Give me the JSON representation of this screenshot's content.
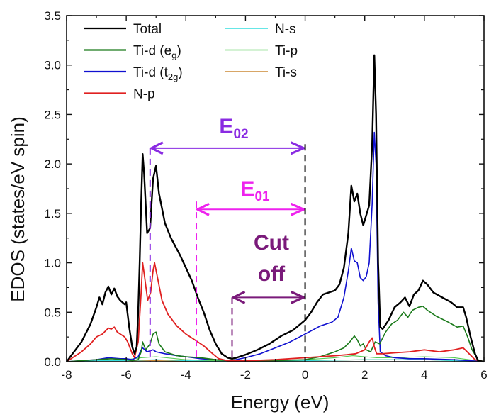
{
  "chart_data": {
    "type": "line",
    "xlabel": "Energy (eV)",
    "ylabel": "EDOS (states/eV spin)",
    "xlim": [
      -8,
      6
    ],
    "ylim": [
      0,
      3.5
    ],
    "x_ticks": [
      "-8",
      "-6",
      "-4",
      "-2",
      "0",
      "2",
      "4",
      "6"
    ],
    "y_ticks": [
      "0.0",
      "0.5",
      "1.0",
      "1.5",
      "2.0",
      "2.5",
      "3.0",
      "3.5"
    ],
    "grid": false,
    "legend": {
      "placement": "top-left",
      "columns": [
        [
          {
            "label": "Total",
            "sub": "",
            "color": "#000000"
          },
          {
            "label": "Ti-d (e",
            "sub": "g",
            "close": ")",
            "color": "#1a7a1a"
          },
          {
            "label": "Ti-d (t",
            "sub": "2g",
            "close": ")",
            "color": "#1010d0"
          },
          {
            "label": "N-p",
            "sub": "",
            "color": "#e02020"
          }
        ],
        [
          {
            "label": "N-s",
            "sub": "",
            "color": "#33dddd"
          },
          {
            "label": "Ti-p",
            "sub": "",
            "color": "#55cc55"
          },
          {
            "label": "Ti-s",
            "sub": "",
            "color": "#cc8833"
          }
        ]
      ]
    },
    "series": [
      {
        "name": "Total",
        "color": "#000000",
        "width": 2.4,
        "points": [
          [
            -8,
            0
          ],
          [
            -7.8,
            0.08
          ],
          [
            -7.5,
            0.2
          ],
          [
            -7.2,
            0.38
          ],
          [
            -7.0,
            0.55
          ],
          [
            -6.9,
            0.65
          ],
          [
            -6.8,
            0.58
          ],
          [
            -6.7,
            0.7
          ],
          [
            -6.6,
            0.76
          ],
          [
            -6.5,
            0.68
          ],
          [
            -6.4,
            0.74
          ],
          [
            -6.3,
            0.66
          ],
          [
            -6.2,
            0.62
          ],
          [
            -6.05,
            0.58
          ],
          [
            -6.0,
            0.6
          ],
          [
            -5.9,
            0.35
          ],
          [
            -5.8,
            0.15
          ],
          [
            -5.72,
            0.08
          ],
          [
            -5.65,
            0.15
          ],
          [
            -5.6,
            0.5
          ],
          [
            -5.55,
            1.0
          ],
          [
            -5.5,
            1.6
          ],
          [
            -5.45,
            2.1
          ],
          [
            -5.4,
            1.9
          ],
          [
            -5.3,
            1.3
          ],
          [
            -5.2,
            1.35
          ],
          [
            -5.1,
            1.85
          ],
          [
            -5.0,
            1.98
          ],
          [
            -4.9,
            1.7
          ],
          [
            -4.7,
            1.4
          ],
          [
            -4.5,
            1.25
          ],
          [
            -4.2,
            1.08
          ],
          [
            -4.0,
            0.95
          ],
          [
            -3.8,
            0.82
          ],
          [
            -3.6,
            0.65
          ],
          [
            -3.4,
            0.5
          ],
          [
            -3.2,
            0.32
          ],
          [
            -3.0,
            0.18
          ],
          [
            -2.8,
            0.08
          ],
          [
            -2.6,
            0.04
          ],
          [
            -2.45,
            0.03
          ],
          [
            -2.3,
            0.04
          ],
          [
            -2.0,
            0.07
          ],
          [
            -1.6,
            0.12
          ],
          [
            -1.2,
            0.18
          ],
          [
            -0.8,
            0.26
          ],
          [
            -0.4,
            0.32
          ],
          [
            0,
            0.42
          ],
          [
            0.2,
            0.5
          ],
          [
            0.4,
            0.6
          ],
          [
            0.6,
            0.68
          ],
          [
            0.8,
            0.7
          ],
          [
            1.0,
            0.72
          ],
          [
            1.15,
            0.78
          ],
          [
            1.3,
            0.95
          ],
          [
            1.45,
            1.3
          ],
          [
            1.55,
            1.78
          ],
          [
            1.65,
            1.62
          ],
          [
            1.75,
            1.7
          ],
          [
            1.85,
            1.5
          ],
          [
            1.95,
            1.38
          ],
          [
            2.05,
            1.48
          ],
          [
            2.15,
            1.58
          ],
          [
            2.25,
            2.2
          ],
          [
            2.32,
            3.1
          ],
          [
            2.38,
            2.5
          ],
          [
            2.45,
            1.0
          ],
          [
            2.52,
            0.35
          ],
          [
            2.6,
            0.33
          ],
          [
            2.8,
            0.42
          ],
          [
            3.0,
            0.55
          ],
          [
            3.2,
            0.6
          ],
          [
            3.35,
            0.65
          ],
          [
            3.5,
            0.56
          ],
          [
            3.65,
            0.68
          ],
          [
            3.8,
            0.72
          ],
          [
            3.95,
            0.82
          ],
          [
            4.1,
            0.78
          ],
          [
            4.3,
            0.7
          ],
          [
            4.6,
            0.65
          ],
          [
            4.9,
            0.6
          ],
          [
            5.1,
            0.55
          ],
          [
            5.3,
            0.55
          ],
          [
            5.4,
            0.45
          ],
          [
            5.55,
            0.25
          ],
          [
            5.7,
            0.08
          ],
          [
            5.8,
            0.01
          ],
          [
            6.0,
            0
          ]
        ]
      },
      {
        "name": "N-p",
        "color": "#e02020",
        "width": 1.8,
        "points": [
          [
            -8,
            0
          ],
          [
            -7.8,
            0.04
          ],
          [
            -7.5,
            0.1
          ],
          [
            -7.2,
            0.18
          ],
          [
            -7.0,
            0.25
          ],
          [
            -6.8,
            0.28
          ],
          [
            -6.6,
            0.34
          ],
          [
            -6.5,
            0.33
          ],
          [
            -6.4,
            0.35
          ],
          [
            -6.3,
            0.3
          ],
          [
            -6.2,
            0.28
          ],
          [
            -6.05,
            0.25
          ],
          [
            -5.95,
            0.2
          ],
          [
            -5.8,
            0.08
          ],
          [
            -5.72,
            0.04
          ],
          [
            -5.6,
            0.2
          ],
          [
            -5.5,
            0.7
          ],
          [
            -5.45,
            1.0
          ],
          [
            -5.38,
            0.85
          ],
          [
            -5.28,
            0.62
          ],
          [
            -5.18,
            0.7
          ],
          [
            -5.1,
            0.92
          ],
          [
            -5.05,
            1.0
          ],
          [
            -4.95,
            0.85
          ],
          [
            -4.8,
            0.62
          ],
          [
            -4.6,
            0.48
          ],
          [
            -4.3,
            0.36
          ],
          [
            -4.0,
            0.28
          ],
          [
            -3.7,
            0.22
          ],
          [
            -3.4,
            0.16
          ],
          [
            -3.1,
            0.08
          ],
          [
            -2.9,
            0.03
          ],
          [
            -2.6,
            0.01
          ],
          [
            -2.0,
            0.01
          ],
          [
            -1.0,
            0.02
          ],
          [
            0,
            0.04
          ],
          [
            0.5,
            0.05
          ],
          [
            1.0,
            0.06
          ],
          [
            1.4,
            0.07
          ],
          [
            1.7,
            0.08
          ],
          [
            2.0,
            0.12
          ],
          [
            2.15,
            0.2
          ],
          [
            2.25,
            0.24
          ],
          [
            2.32,
            0.15
          ],
          [
            2.4,
            0.08
          ],
          [
            2.6,
            0.08
          ],
          [
            3.0,
            0.09
          ],
          [
            3.5,
            0.1
          ],
          [
            4.0,
            0.12
          ],
          [
            4.5,
            0.1
          ],
          [
            5.0,
            0.12
          ],
          [
            5.3,
            0.14
          ],
          [
            5.5,
            0.08
          ],
          [
            5.7,
            0.02
          ],
          [
            6.0,
            0
          ]
        ]
      },
      {
        "name": "Ti-d (eg)",
        "color": "#1a7a1a",
        "width": 1.6,
        "points": [
          [
            -8,
            0
          ],
          [
            -7.0,
            0.02
          ],
          [
            -6.5,
            0.03
          ],
          [
            -6.0,
            0.02
          ],
          [
            -5.8,
            0.01
          ],
          [
            -5.6,
            0.02
          ],
          [
            -5.5,
            0.1
          ],
          [
            -5.45,
            0.2
          ],
          [
            -5.35,
            0.12
          ],
          [
            -5.2,
            0.18
          ],
          [
            -5.1,
            0.28
          ],
          [
            -5.0,
            0.3
          ],
          [
            -4.9,
            0.18
          ],
          [
            -4.7,
            0.1
          ],
          [
            -4.3,
            0.06
          ],
          [
            -4.0,
            0.05
          ],
          [
            -3.5,
            0.04
          ],
          [
            -3.0,
            0.02
          ],
          [
            -2.5,
            0.01
          ],
          [
            -1.0,
            0.01
          ],
          [
            0,
            0.02
          ],
          [
            0.5,
            0.05
          ],
          [
            1.0,
            0.1
          ],
          [
            1.3,
            0.14
          ],
          [
            1.5,
            0.2
          ],
          [
            1.65,
            0.26
          ],
          [
            1.75,
            0.22
          ],
          [
            1.85,
            0.16
          ],
          [
            1.95,
            0.18
          ],
          [
            2.05,
            0.12
          ],
          [
            2.2,
            0.1
          ],
          [
            2.35,
            0.2
          ],
          [
            2.5,
            0.18
          ],
          [
            2.7,
            0.3
          ],
          [
            2.9,
            0.38
          ],
          [
            3.1,
            0.42
          ],
          [
            3.3,
            0.5
          ],
          [
            3.45,
            0.45
          ],
          [
            3.6,
            0.52
          ],
          [
            3.8,
            0.55
          ],
          [
            3.95,
            0.56
          ],
          [
            4.1,
            0.52
          ],
          [
            4.4,
            0.46
          ],
          [
            4.8,
            0.4
          ],
          [
            5.1,
            0.35
          ],
          [
            5.3,
            0.36
          ],
          [
            5.45,
            0.25
          ],
          [
            5.6,
            0.12
          ],
          [
            5.8,
            0.02
          ],
          [
            6.0,
            0
          ]
        ]
      },
      {
        "name": "Ti-d (t2g)",
        "color": "#1010d0",
        "width": 1.6,
        "points": [
          [
            -8,
            0
          ],
          [
            -7.0,
            0.02
          ],
          [
            -6.6,
            0.04
          ],
          [
            -6.2,
            0.03
          ],
          [
            -6.0,
            0.03
          ],
          [
            -5.8,
            0.02
          ],
          [
            -5.6,
            0.05
          ],
          [
            -5.5,
            0.12
          ],
          [
            -5.45,
            0.14
          ],
          [
            -5.3,
            0.1
          ],
          [
            -5.1,
            0.12
          ],
          [
            -5.0,
            0.1
          ],
          [
            -4.7,
            0.08
          ],
          [
            -4.3,
            0.06
          ],
          [
            -4.0,
            0.05
          ],
          [
            -3.5,
            0.03
          ],
          [
            -3.0,
            0.02
          ],
          [
            -2.5,
            0.01
          ],
          [
            -2.0,
            0.04
          ],
          [
            -1.5,
            0.08
          ],
          [
            -1.0,
            0.14
          ],
          [
            -0.5,
            0.2
          ],
          [
            0,
            0.28
          ],
          [
            0.5,
            0.36
          ],
          [
            0.9,
            0.4
          ],
          [
            1.1,
            0.45
          ],
          [
            1.3,
            0.65
          ],
          [
            1.45,
            0.92
          ],
          [
            1.55,
            1.15
          ],
          [
            1.65,
            1.02
          ],
          [
            1.75,
            1.0
          ],
          [
            1.85,
            0.85
          ],
          [
            1.95,
            0.82
          ],
          [
            2.05,
            0.86
          ],
          [
            2.15,
            1.0
          ],
          [
            2.25,
            1.6
          ],
          [
            2.32,
            2.32
          ],
          [
            2.38,
            2.0
          ],
          [
            2.45,
            0.6
          ],
          [
            2.52,
            0.1
          ],
          [
            2.7,
            0.06
          ],
          [
            3.0,
            0.04
          ],
          [
            3.5,
            0.03
          ],
          [
            4.0,
            0.03
          ],
          [
            5.0,
            0.02
          ],
          [
            5.5,
            0.01
          ],
          [
            6.0,
            0
          ]
        ]
      },
      {
        "name": "Ti-p",
        "color": "#55cc55",
        "width": 1.1,
        "points": [
          [
            -8,
            0
          ],
          [
            -7.0,
            0.02
          ],
          [
            -6.5,
            0.03
          ],
          [
            -6.0,
            0.02
          ],
          [
            -5.5,
            0.04
          ],
          [
            -5.0,
            0.05
          ],
          [
            -4.0,
            0.02
          ],
          [
            -3.0,
            0.01
          ],
          [
            -2.0,
            0.01
          ],
          [
            0,
            0.02
          ],
          [
            1.0,
            0.04
          ],
          [
            1.6,
            0.06
          ],
          [
            2.0,
            0.05
          ],
          [
            2.4,
            0.04
          ],
          [
            3.0,
            0.04
          ],
          [
            4.0,
            0.05
          ],
          [
            5.0,
            0.04
          ],
          [
            5.5,
            0.02
          ],
          [
            6.0,
            0
          ]
        ]
      },
      {
        "name": "N-s",
        "color": "#33dddd",
        "width": 1.1,
        "points": [
          [
            -8,
            0
          ],
          [
            -7.0,
            0.01
          ],
          [
            -6.0,
            0.01
          ],
          [
            -5.0,
            0.02
          ],
          [
            -4.0,
            0.01
          ],
          [
            -2.0,
            0.0
          ],
          [
            0,
            0.01
          ],
          [
            2.0,
            0.02
          ],
          [
            4.0,
            0.02
          ],
          [
            6.0,
            0
          ]
        ]
      },
      {
        "name": "Ti-s",
        "color": "#cc8833",
        "width": 1.1,
        "points": [
          [
            -8,
            0
          ],
          [
            -7.0,
            0.01
          ],
          [
            -6.0,
            0.01
          ],
          [
            -5.0,
            0.01
          ],
          [
            -3.0,
            0.0
          ],
          [
            0,
            0.01
          ],
          [
            2.0,
            0.02
          ],
          [
            4.0,
            0.02
          ],
          [
            5.0,
            0.01
          ],
          [
            6.0,
            0
          ]
        ]
      }
    ],
    "annotations": [
      {
        "label": "E",
        "sub": "02",
        "color": "#8a2be2",
        "x_from": -5.2,
        "x_to": 0,
        "y_arrow": 2.16,
        "dashed_x": -5.2,
        "dashed_top": 2.16
      },
      {
        "label": "E",
        "sub": "01",
        "color": "#ee22ee",
        "x_from": -3.65,
        "x_to": 0,
        "y_arrow": 1.54,
        "dashed_x": -3.65,
        "dashed_top": 1.62
      },
      {
        "label": "Cut off",
        "sub": "",
        "color": "#7a1a7a",
        "x_from": -2.45,
        "x_to": 0,
        "y_arrow": 0.65,
        "dashed_x": -2.45,
        "dashed_top": 0.65
      }
    ],
    "fermi_line": {
      "x": 0,
      "y_top": 2.2,
      "color": "#000000"
    }
  }
}
